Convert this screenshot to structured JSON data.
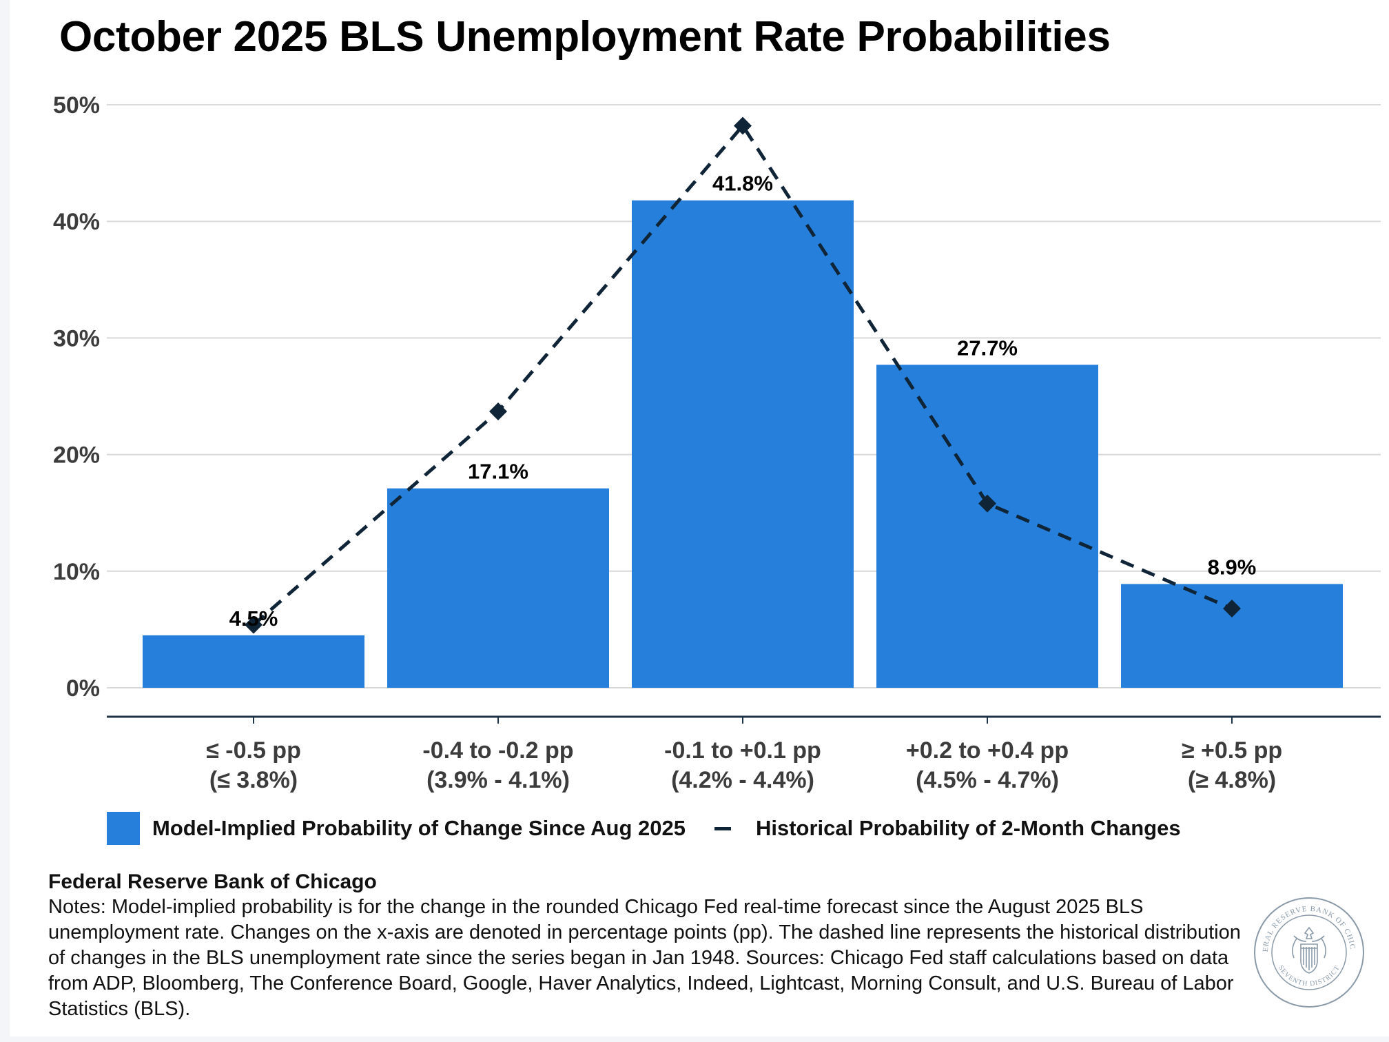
{
  "title": "October 2025 BLS Unemployment Rate Probabilities",
  "colors": {
    "bar": "#2680DB",
    "line": "#0F2537",
    "grid": "#D9D9D9",
    "axis": "#1F3347",
    "tick_text": "#3C3C3C",
    "seal": "#8A9AA8"
  },
  "chart_data": {
    "type": "bar",
    "categories": [
      [
        "≤ -0.5 pp",
        "(≤ 3.8%)"
      ],
      [
        "-0.4 to -0.2 pp",
        "(3.9% - 4.1%)"
      ],
      [
        "-0.1 to +0.1 pp",
        "(4.2% - 4.4%)"
      ],
      [
        "+0.2 to +0.4 pp",
        "(4.5% - 4.7%)"
      ],
      [
        "≥ +0.5 pp",
        "(≥ 4.8%)"
      ]
    ],
    "series": [
      {
        "name": "Model-Implied Probability of Change Since Aug 2025",
        "type": "bar",
        "values": [
          4.5,
          17.1,
          41.8,
          27.7,
          8.9
        ],
        "data_labels": [
          "4.5%",
          "17.1%",
          "41.8%",
          "27.7%",
          "8.9%"
        ]
      },
      {
        "name": "Historical Probability of 2-Month Changes",
        "type": "line",
        "style": "dashed",
        "marker": "diamond",
        "values": [
          5.4,
          23.7,
          48.2,
          15.8,
          6.8
        ]
      }
    ],
    "y_ticks": [
      "0%",
      "10%",
      "20%",
      "30%",
      "40%",
      "50%"
    ],
    "ylim": [
      0,
      50
    ],
    "grid": true,
    "legend_position": "bottom"
  },
  "footer": {
    "source_title": "Federal Reserve Bank of Chicago",
    "notes": "Notes: Model-implied probability is for the change in the rounded Chicago Fed real-time forecast since the August 2025 BLS unemployment rate. Changes on the x-axis are denoted in percentage points (pp). The dashed line represents the historical distribution of changes in the BLS unemployment rate since the series began in Jan 1948. Sources: Chicago Fed staff calculations based on data from ADP, Bloomberg, The Conference Board, Google, Haver Analytics, Indeed, Lightcast, Morning Consult, and U.S. Bureau of Labor Statistics (BLS).",
    "seal_text_top": "FEDERAL RESERVE BANK OF CHICAGO",
    "seal_text_bottom": "SEVENTH DISTRICT"
  }
}
